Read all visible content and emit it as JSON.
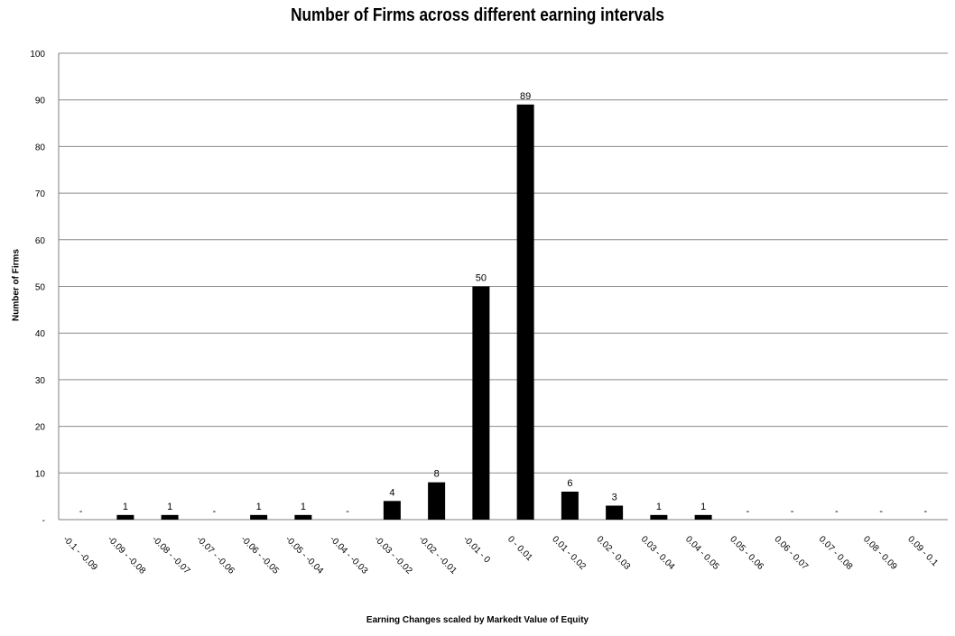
{
  "chart_data": {
    "type": "bar",
    "title": "Number of Firms across different earning intervals",
    "xlabel": "Earning Changes scaled by Markedt Value of Equity",
    "ylabel": "Number of Firms",
    "ylim": [
      0,
      100
    ],
    "y_ticks": [
      "-",
      "10",
      "20",
      "30",
      "40",
      "50",
      "60",
      "70",
      "80",
      "90",
      "100"
    ],
    "grid": true,
    "legend": "none",
    "bar_color": "#000000",
    "categories": [
      "-0.1 - -0.09",
      "-0.09 - -0.08",
      "-0.08 - -0.07",
      "-0.07 - -0.06",
      "-0.06 - -0.05",
      "-0.05 - -0.04",
      "-0.04 - -0.03",
      "-0.03 - -0.02",
      "-0.02 - -0.01",
      "-0.01 - 0",
      "0 - 0.01",
      "0.01 - 0.02",
      "0.02 - 0.03",
      "0.03 - 0.04",
      "0.04 - 0.05",
      "0.05 - 0.06",
      "0.06 - 0.07",
      "0.07 - 0.08",
      "0.08 - 0.09",
      "0.09 - 0.1"
    ],
    "values": [
      0,
      1,
      1,
      0,
      1,
      1,
      0,
      4,
      8,
      50,
      89,
      6,
      3,
      1,
      1,
      0,
      0,
      0,
      0,
      0
    ],
    "data_labels": [
      "-",
      "1",
      "1",
      "-",
      "1",
      "1",
      "-",
      "4",
      "8",
      "50",
      "89",
      "6",
      "3",
      "1",
      "1",
      "-",
      "-",
      "-",
      "-",
      "-"
    ]
  }
}
